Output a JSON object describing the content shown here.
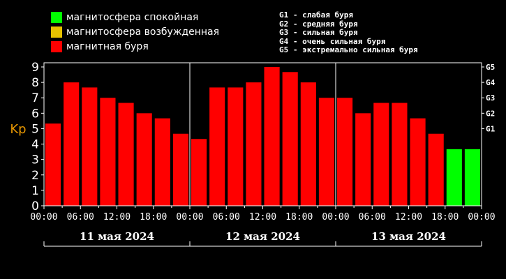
{
  "legend": [
    {
      "label": "магнитосфера спокойная",
      "color": "#00ff00"
    },
    {
      "label": "магнитосфера возбужденная",
      "color": "#e6c200"
    },
    {
      "label": "магнитная буря",
      "color": "#ff0000"
    }
  ],
  "g_legend": [
    "G1 - слабая буря",
    "G2 - средняя буря",
    "G3 - сильная буря",
    "G4 - очень сильная буря",
    "G5 - экстремально сильная буря"
  ],
  "chart_data": {
    "type": "bar",
    "ylabel": "Kp",
    "ylim": [
      0,
      9
    ],
    "y_ticks": [
      "0",
      "1",
      "2",
      "3",
      "4",
      "5",
      "6",
      "7",
      "8",
      "9"
    ],
    "right_ticks": [
      {
        "label": "G1",
        "value": 5
      },
      {
        "label": "G2",
        "value": 6
      },
      {
        "label": "G3",
        "value": 7
      },
      {
        "label": "G4",
        "value": 8
      },
      {
        "label": "G5",
        "value": 9
      }
    ],
    "x_tick_labels": [
      "00:00",
      "06:00",
      "12:00",
      "18:00",
      "00:00",
      "06:00",
      "12:00",
      "18:00",
      "00:00",
      "06:00",
      "12:00",
      "18:00",
      "00:00"
    ],
    "days": [
      "11 мая 2024",
      "12 мая 2024",
      "13 мая 2024"
    ],
    "values": [
      5.33,
      8.0,
      7.67,
      7.0,
      6.67,
      6.0,
      5.67,
      4.67,
      4.33,
      7.67,
      7.67,
      8.0,
      9.0,
      8.67,
      8.0,
      7.0,
      7.0,
      6.0,
      6.67,
      6.67,
      5.67,
      4.67,
      3.67,
      3.67
    ],
    "bar_colors": [
      "#ff0000",
      "#ff0000",
      "#ff0000",
      "#ff0000",
      "#ff0000",
      "#ff0000",
      "#ff0000",
      "#ff0000",
      "#ff0000",
      "#ff0000",
      "#ff0000",
      "#ff0000",
      "#ff0000",
      "#ff0000",
      "#ff0000",
      "#ff0000",
      "#ff0000",
      "#ff0000",
      "#ff0000",
      "#ff0000",
      "#ff0000",
      "#ff0000",
      "#00ff00",
      "#00ff00"
    ],
    "colors": {
      "axis": "#ffffff",
      "ylabel": "#e69600"
    },
    "grid": false
  }
}
